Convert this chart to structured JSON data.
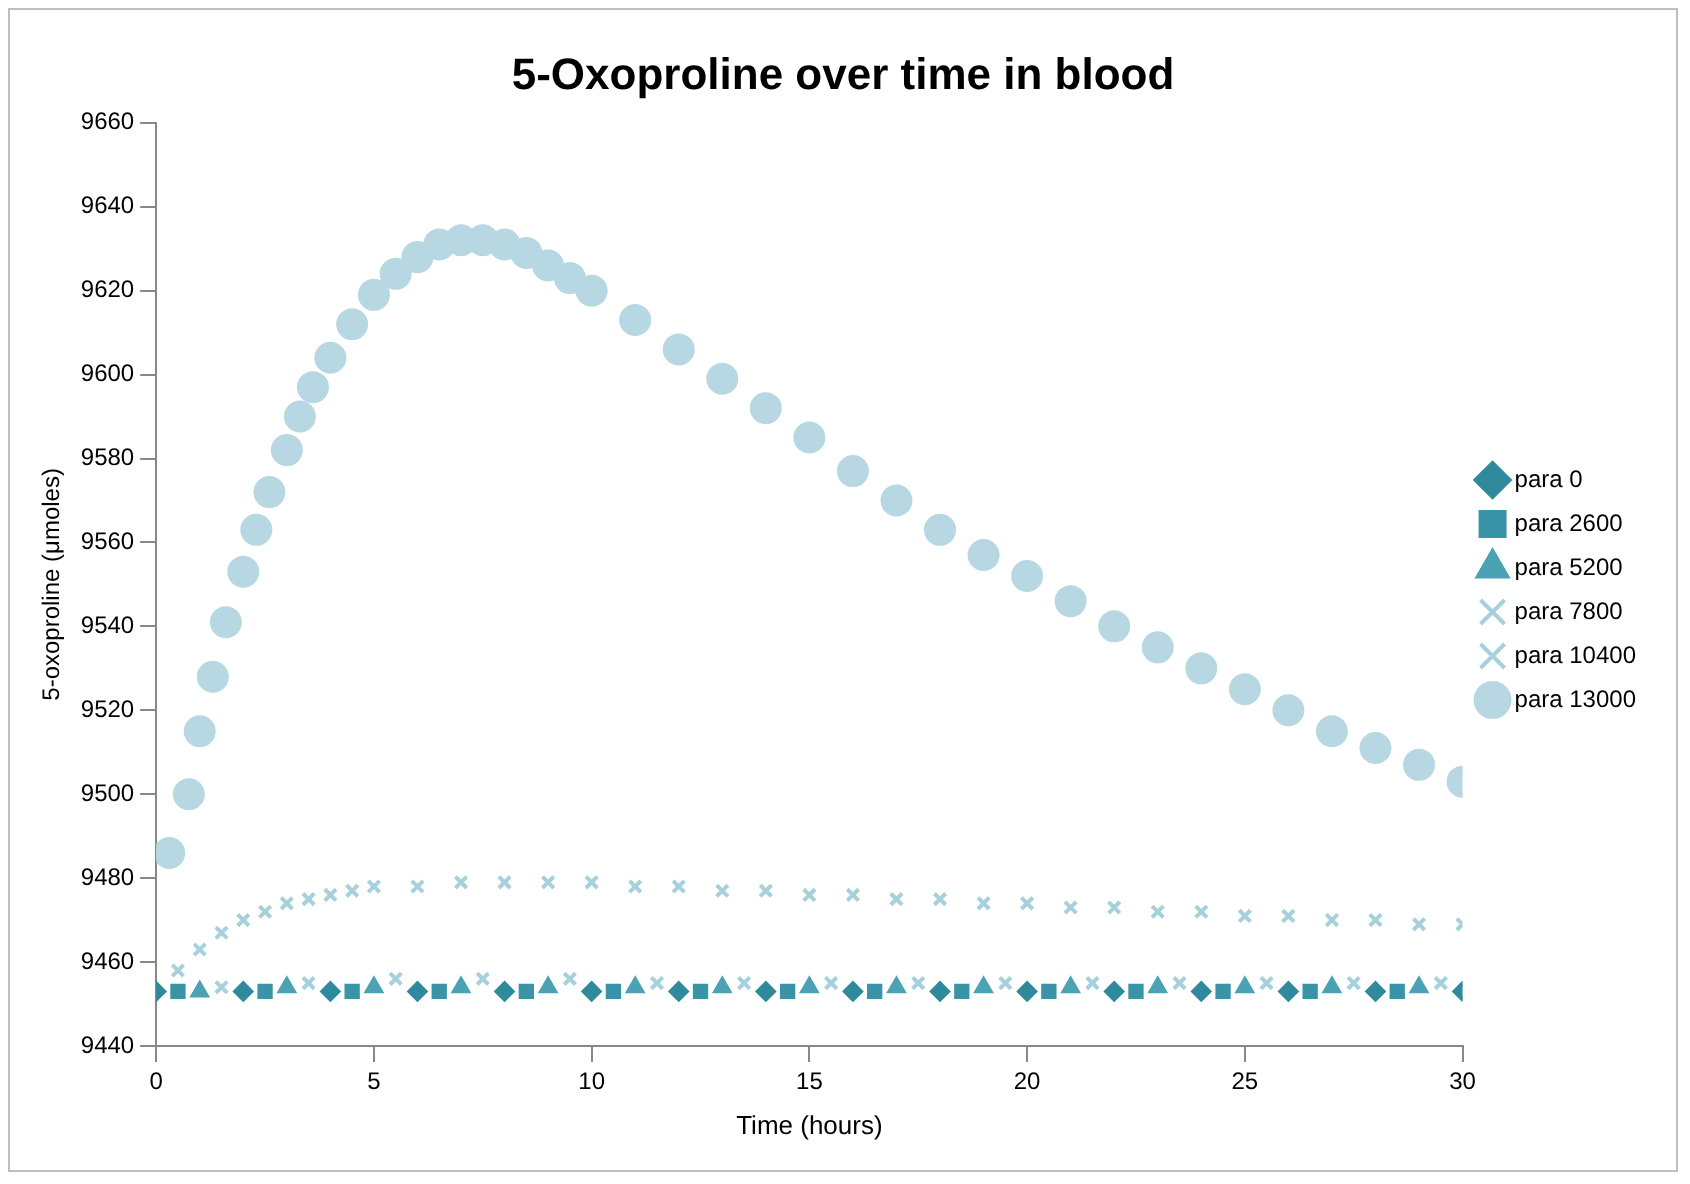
{
  "chart_data": {
    "type": "scatter",
    "title": "5-Oxoproline over time in blood",
    "xlabel": "Time (hours)",
    "ylabel": "5-oxoproline (μmoles)",
    "xlim": [
      0,
      30
    ],
    "xticks": [
      0,
      5,
      10,
      15,
      20,
      25,
      30
    ],
    "ylim": [
      9440,
      9660
    ],
    "yticks": [
      9440,
      9460,
      9480,
      9500,
      9520,
      9540,
      9560,
      9580,
      9600,
      9620,
      9640,
      9660
    ],
    "grid": false,
    "legend": "right",
    "series": [
      {
        "name": "para 0",
        "color": "#2e8a9c",
        "marker": "diamond",
        "x": [
          0,
          2,
          4,
          6,
          8,
          10,
          12,
          14,
          16,
          18,
          20,
          22,
          24,
          26,
          28,
          30
        ],
        "values": [
          9453,
          9453,
          9453,
          9453,
          9453,
          9453,
          9453,
          9453,
          9453,
          9453,
          9453,
          9453,
          9453,
          9453,
          9453,
          9453
        ]
      },
      {
        "name": "para 2600",
        "color": "#3a94a7",
        "marker": "square",
        "x": [
          0.5,
          2.5,
          4.5,
          6.5,
          8.5,
          10.5,
          12.5,
          14.5,
          16.5,
          18.5,
          20.5,
          22.5,
          24.5,
          26.5,
          28.5
        ],
        "values": [
          9453,
          9453,
          9453,
          9453,
          9453,
          9453,
          9453,
          9453,
          9453,
          9453,
          9453,
          9453,
          9453,
          9453,
          9453
        ]
      },
      {
        "name": "para 5200",
        "color": "#4ba2b4",
        "marker": "triangle",
        "x": [
          1,
          3,
          5,
          7,
          9,
          11,
          13,
          15,
          17,
          19,
          21,
          23,
          25,
          27,
          29
        ],
        "values": [
          9453,
          9454,
          9454,
          9454,
          9454,
          9454,
          9454,
          9454,
          9454,
          9454,
          9454,
          9454,
          9454,
          9454,
          9454
        ]
      },
      {
        "name": "para 7800",
        "color": "#a6d0dc",
        "marker": "cross",
        "x": [
          1.5,
          3.5,
          5.5,
          7.5,
          9.5,
          11.5,
          13.5,
          15.5,
          17.5,
          19.5,
          21.5,
          23.5,
          25.5,
          27.5,
          29.5
        ],
        "values": [
          9454,
          9455,
          9456,
          9456,
          9456,
          9455,
          9455,
          9455,
          9455,
          9455,
          9455,
          9455,
          9455,
          9455,
          9455
        ]
      },
      {
        "name": "para 10400",
        "color": "#a6d0dc",
        "marker": "cross",
        "x": [
          0.5,
          1,
          1.5,
          2,
          2.5,
          3,
          3.5,
          4,
          4.5,
          5,
          6,
          7,
          8,
          9,
          10,
          11,
          12,
          13,
          14,
          15,
          16,
          17,
          18,
          19,
          20,
          21,
          22,
          23,
          24,
          25,
          26,
          27,
          28,
          29,
          30
        ],
        "values": [
          9458,
          9463,
          9467,
          9470,
          9472,
          9474,
          9475,
          9476,
          9477,
          9478,
          9478,
          9479,
          9479,
          9479,
          9479,
          9478,
          9478,
          9477,
          9477,
          9476,
          9476,
          9475,
          9475,
          9474,
          9474,
          9473,
          9473,
          9472,
          9472,
          9471,
          9471,
          9470,
          9470,
          9469,
          9469
        ]
      },
      {
        "name": "para 13000",
        "color": "#b7d8e2",
        "marker": "circle",
        "x": [
          0.3,
          0.75,
          1,
          1.3,
          1.6,
          2,
          2.3,
          2.6,
          3,
          3.3,
          3.6,
          4,
          4.5,
          5,
          5.5,
          6,
          6.5,
          7,
          7.5,
          8,
          8.5,
          9,
          9.5,
          10,
          11,
          12,
          13,
          14,
          15,
          16,
          17,
          18,
          19,
          20,
          21,
          22,
          23,
          24,
          25,
          26,
          27,
          28,
          29,
          30
        ],
        "values": [
          9486,
          9500,
          9515,
          9528,
          9541,
          9553,
          9563,
          9572,
          9582,
          9590,
          9597,
          9604,
          9612,
          9619,
          9624,
          9628,
          9631,
          9632,
          9632,
          9631,
          9629,
          9626,
          9623,
          9620,
          9613,
          9606,
          9599,
          9592,
          9585,
          9577,
          9570,
          9563,
          9557,
          9552,
          9546,
          9540,
          9535,
          9530,
          9525,
          9520,
          9515,
          9511,
          9507,
          9503
        ]
      }
    ]
  }
}
